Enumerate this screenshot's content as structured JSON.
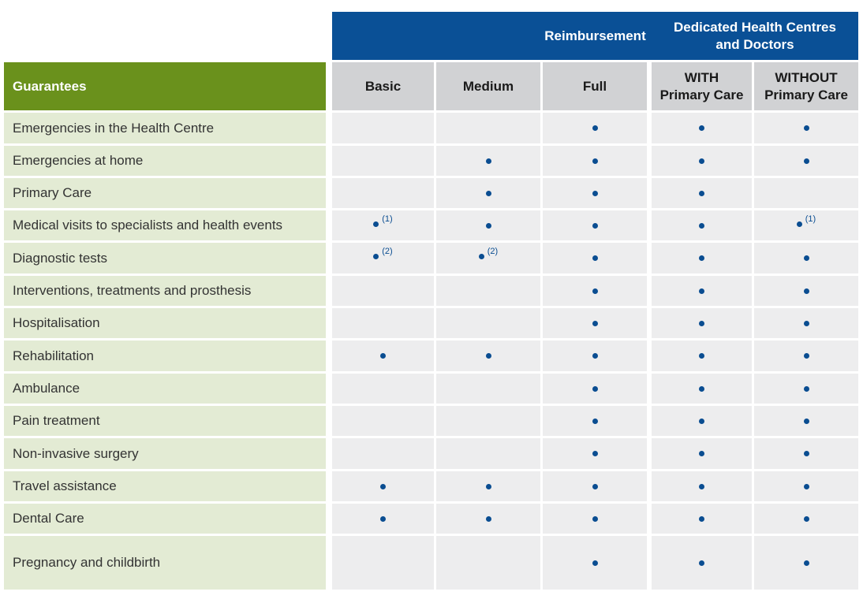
{
  "header": {
    "reimbursement": "Reimbursement",
    "dedicated_line1": "Dedicated Health Centres",
    "dedicated_line2": "and Doctors"
  },
  "columns": {
    "guarantees": "Guarantees",
    "basic": "Basic",
    "medium": "Medium",
    "full": "Full",
    "with_line1": "WITH",
    "with_line2": "Primary Care",
    "without_line1": "WITHOUT",
    "without_line2": "Primary Care"
  },
  "rows": [
    {
      "label": "Emergencies in the Health Centre",
      "basic": "",
      "medium": "",
      "full": "•",
      "with": "•",
      "without": "•"
    },
    {
      "label": "Emergencies at home",
      "basic": "",
      "medium": "•",
      "full": "•",
      "with": "•",
      "without": "•"
    },
    {
      "label": "Primary Care",
      "basic": "",
      "medium": "•",
      "full": "•",
      "with": "•",
      "without": ""
    },
    {
      "label": "Medical visits to specialists and health events",
      "basic": "•(1)",
      "medium": "•",
      "full": "•",
      "with": "•",
      "without": "•(1)"
    },
    {
      "label": "Diagnostic tests",
      "basic": "• (2)",
      "medium": "• (2)",
      "full": "•",
      "with": "•",
      "without": "•"
    },
    {
      "label": "Interventions, treatments and prosthesis",
      "basic": "",
      "medium": "",
      "full": "•",
      "with": "•",
      "without": "•"
    },
    {
      "label": "Hospitalisation",
      "basic": "",
      "medium": "",
      "full": "•",
      "with": "•",
      "without": "•"
    },
    {
      "label": "Rehabilitation",
      "basic": "•",
      "medium": "•",
      "full": "•",
      "with": "•",
      "without": "•"
    },
    {
      "label": "Ambulance",
      "basic": "",
      "medium": "",
      "full": "•",
      "with": "•",
      "without": "•"
    },
    {
      "label": "Pain treatment",
      "basic": "",
      "medium": "",
      "full": "•",
      "with": "•",
      "without": "•"
    },
    {
      "label": "Non-invasive surgery",
      "basic": "",
      "medium": "",
      "full": "•",
      "with": "•",
      "without": "•"
    },
    {
      "label": "Travel assistance",
      "basic": "•",
      "medium": "•",
      "full": "•",
      "with": "•",
      "without": "•"
    },
    {
      "label": "Dental Care",
      "basic": "•",
      "medium": "•",
      "full": "•",
      "with": "•",
      "without": "•"
    },
    {
      "label": "Pregnancy and childbirth",
      "basic": "",
      "medium": "",
      "full": "•",
      "with": "•",
      "without": "•"
    }
  ],
  "colors": {
    "header_blue": "#0a5096",
    "guarantee_green": "#6a911c",
    "label_bg": "#e3ebd4",
    "cell_bg": "#ededee",
    "subheader_grey": "#d1d2d4",
    "dot_blue": "#0a4d91"
  }
}
